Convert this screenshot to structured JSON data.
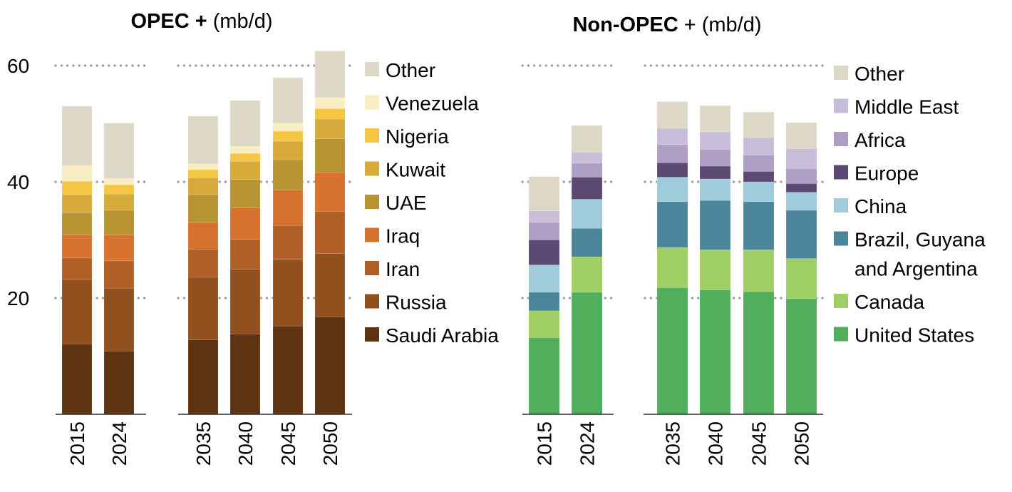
{
  "chart_data": [
    {
      "type": "bar",
      "stacked": true,
      "title": "OPEC + (mb/d)",
      "title_bold": "OPEC +",
      "title_rest": " (mb/d)",
      "unit": "mb/d",
      "ylim": [
        0,
        62
      ],
      "yticks": [
        20,
        40,
        60
      ],
      "grid": true,
      "legend_position": "right",
      "groups": [
        [
          "2015",
          "2024"
        ],
        [
          "2035",
          "2040",
          "2045",
          "2050"
        ]
      ],
      "categories": [
        "2015",
        "2024",
        "2035",
        "2040",
        "2045",
        "2050"
      ],
      "series": [
        {
          "name": "Saudi Arabia",
          "color": "#5E3312",
          "values": [
            12.1,
            10.9,
            12.8,
            13.8,
            15.2,
            16.8
          ]
        },
        {
          "name": "Russia",
          "color": "#91501E",
          "values": [
            11.1,
            10.8,
            10.8,
            11.2,
            11.4,
            10.9
          ]
        },
        {
          "name": "Iran",
          "color": "#B06026",
          "values": [
            3.7,
            4.7,
            4.8,
            5.1,
            5.9,
            7.2
          ]
        },
        {
          "name": "Iraq",
          "color": "#D6722E",
          "values": [
            4.0,
            4.5,
            4.6,
            5.4,
            6.1,
            6.7
          ]
        },
        {
          "name": "UAE",
          "color": "#B89331",
          "values": [
            3.8,
            4.2,
            4.8,
            4.9,
            5.2,
            5.8
          ]
        },
        {
          "name": "Kuwait",
          "color": "#D6AB3C",
          "values": [
            3.1,
            2.8,
            2.9,
            3.1,
            3.2,
            3.4
          ]
        },
        {
          "name": "Nigeria",
          "color": "#F5C544",
          "values": [
            2.3,
            1.6,
            1.4,
            1.4,
            1.7,
            1.8
          ]
        },
        {
          "name": "Venezuela",
          "color": "#FAEDC1",
          "values": [
            2.7,
            1.1,
            1.0,
            1.2,
            1.4,
            1.9
          ]
        },
        {
          "name": "Other",
          "color": "#DDD8C5",
          "values": [
            10.2,
            9.5,
            8.2,
            7.9,
            7.8,
            8.0
          ]
        }
      ],
      "legend": [
        {
          "label": "Other",
          "color": "#DDD8C5"
        },
        {
          "label": "Venezuela",
          "color": "#FAEDC1"
        },
        {
          "label": "Nigeria",
          "color": "#F5C544"
        },
        {
          "label": "Kuwait",
          "color": "#D6AB3C"
        },
        {
          "label": "UAE",
          "color": "#B89331"
        },
        {
          "label": "Iraq",
          "color": "#D6722E"
        },
        {
          "label": "Iran",
          "color": "#B06026"
        },
        {
          "label": "Russia",
          "color": "#91501E"
        },
        {
          "label": "Saudi Arabia",
          "color": "#5E3312"
        }
      ]
    },
    {
      "type": "bar",
      "stacked": true,
      "title": "Non-OPEC + (mb/d)",
      "title_bold": "Non-OPEC",
      "title_rest": " + (mb/d)",
      "unit": "mb/d",
      "ylim": [
        0,
        62
      ],
      "yticks": [
        20,
        40,
        60
      ],
      "grid": true,
      "legend_position": "right",
      "groups": [
        [
          "2015",
          "2024"
        ],
        [
          "2035",
          "2040",
          "2045",
          "2050"
        ]
      ],
      "categories": [
        "2015",
        "2024",
        "2035",
        "2040",
        "2045",
        "2050"
      ],
      "series": [
        {
          "name": "United States",
          "color": "#50AE5D",
          "values": [
            13.2,
            21.0,
            21.8,
            21.4,
            21.1,
            19.9
          ]
        },
        {
          "name": "Canada",
          "color": "#A0D065",
          "values": [
            4.6,
            6.1,
            6.9,
            6.9,
            7.2,
            6.9
          ]
        },
        {
          "name": "Brazil, Guyana and Argentina",
          "color": "#4A8599",
          "values": [
            3.2,
            4.9,
            7.9,
            8.5,
            8.3,
            8.3
          ]
        },
        {
          "name": "China",
          "color": "#9FCBDA",
          "values": [
            4.7,
            5.0,
            4.2,
            3.7,
            3.4,
            3.1
          ]
        },
        {
          "name": "Europe",
          "color": "#5C4A75",
          "values": [
            4.3,
            3.8,
            2.5,
            2.2,
            1.8,
            1.5
          ]
        },
        {
          "name": "Africa",
          "color": "#AE9EC3",
          "values": [
            3.0,
            2.4,
            3.1,
            2.9,
            2.8,
            2.6
          ]
        },
        {
          "name": "Middle East",
          "color": "#C9BED9",
          "values": [
            2.0,
            1.9,
            2.8,
            3.0,
            3.0,
            3.4
          ]
        },
        {
          "name": "Other",
          "color": "#DDD8C5",
          "values": [
            5.9,
            4.6,
            4.6,
            4.5,
            4.4,
            4.5
          ]
        }
      ],
      "legend": [
        {
          "label": "Other",
          "color": "#DDD8C5"
        },
        {
          "label": "Middle East",
          "color": "#C9BED9"
        },
        {
          "label": "Africa",
          "color": "#AE9EC3"
        },
        {
          "label": "Europe",
          "color": "#5C4A75"
        },
        {
          "label": "China",
          "color": "#9FCBDA"
        },
        {
          "label": "Brazil, Guyana",
          "label2": "and Argentina",
          "color": "#4A8599"
        },
        {
          "label": "Canada",
          "color": "#A0D065"
        },
        {
          "label": "United States",
          "color": "#50AE5D"
        }
      ]
    }
  ]
}
